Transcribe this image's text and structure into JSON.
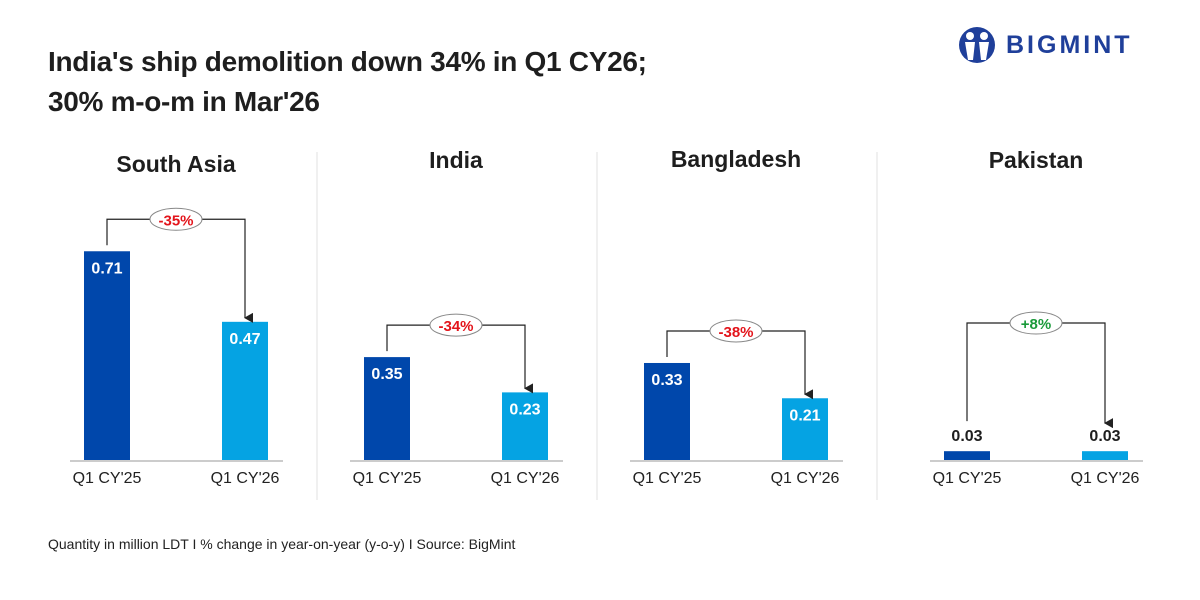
{
  "title_line1": "India's ship demolition down 34% in Q1 CY26;",
  "title_line2": "30% m-o-m in Mar'26",
  "logo": {
    "text": "BIGMINT",
    "color": "#1f3f9a"
  },
  "footer": "Quantity in million LDT  I  % change in year-on-year (y-o-y)  I  Source: BigMint",
  "chart_data": [
    {
      "type": "bar",
      "title": "South Asia",
      "categories": [
        "Q1 CY'25",
        "Q1 CY'26"
      ],
      "values": [
        0.71,
        0.47
      ],
      "change": "-35%",
      "change_color": "#e3141b"
    },
    {
      "type": "bar",
      "title": "India",
      "categories": [
        "Q1 CY'25",
        "Q1 CY'26"
      ],
      "values": [
        0.35,
        0.23
      ],
      "change": "-34%",
      "change_color": "#e3141b"
    },
    {
      "type": "bar",
      "title": "Bangladesh",
      "categories": [
        "Q1 CY'25",
        "Q1 CY'26"
      ],
      "values": [
        0.33,
        0.21
      ],
      "change": "-38%",
      "change_color": "#e3141b"
    },
    {
      "type": "bar",
      "title": "Pakistan",
      "categories": [
        "Q1 CY'25",
        "Q1 CY'26"
      ],
      "values": [
        0.03,
        0.03
      ],
      "change": "+8%",
      "change_color": "#1a9a3a"
    }
  ],
  "colors": {
    "q1_cy25": "#0047ab",
    "q1_cy26": "#05a3e3"
  }
}
